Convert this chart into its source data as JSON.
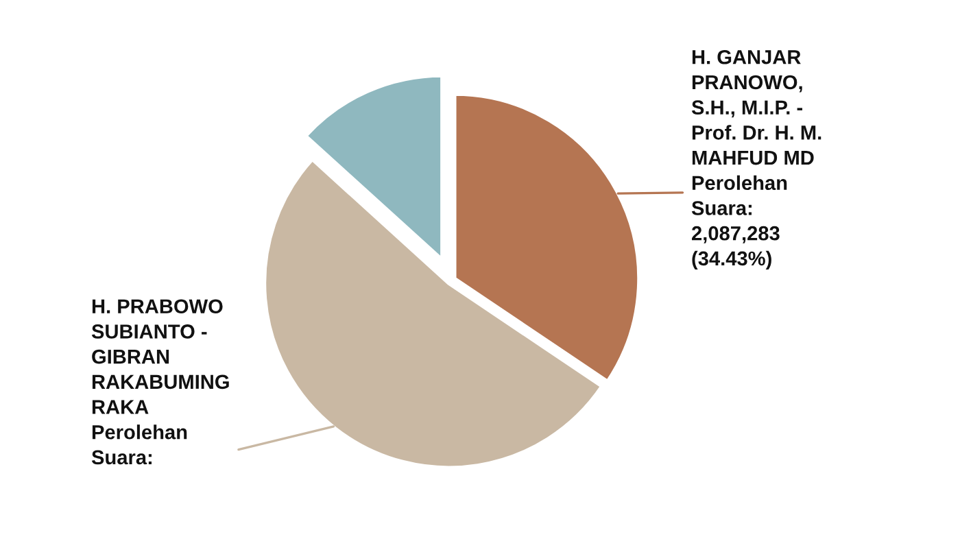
{
  "chart_data": {
    "type": "pie",
    "categories": [
      "H. GANJAR\nPRANOWO,\nS.H., M.I.P. -\nProf. Dr. H. M.\nMAHFUD MD",
      "H. PRABOWO\nSUBIANTO -\nGIBRAN\nRAKABUMING\nRAKA",
      null
    ],
    "value_labels": [
      "Perolehan\nSuara:\n2,087,283\n(34.43%)",
      "Perolehan\nSuara:",
      null
    ],
    "values": [
      34.43,
      52.3,
      13.27
    ],
    "colors": [
      "#b57552",
      "#c9b8a3",
      "#8fb8bf"
    ]
  }
}
